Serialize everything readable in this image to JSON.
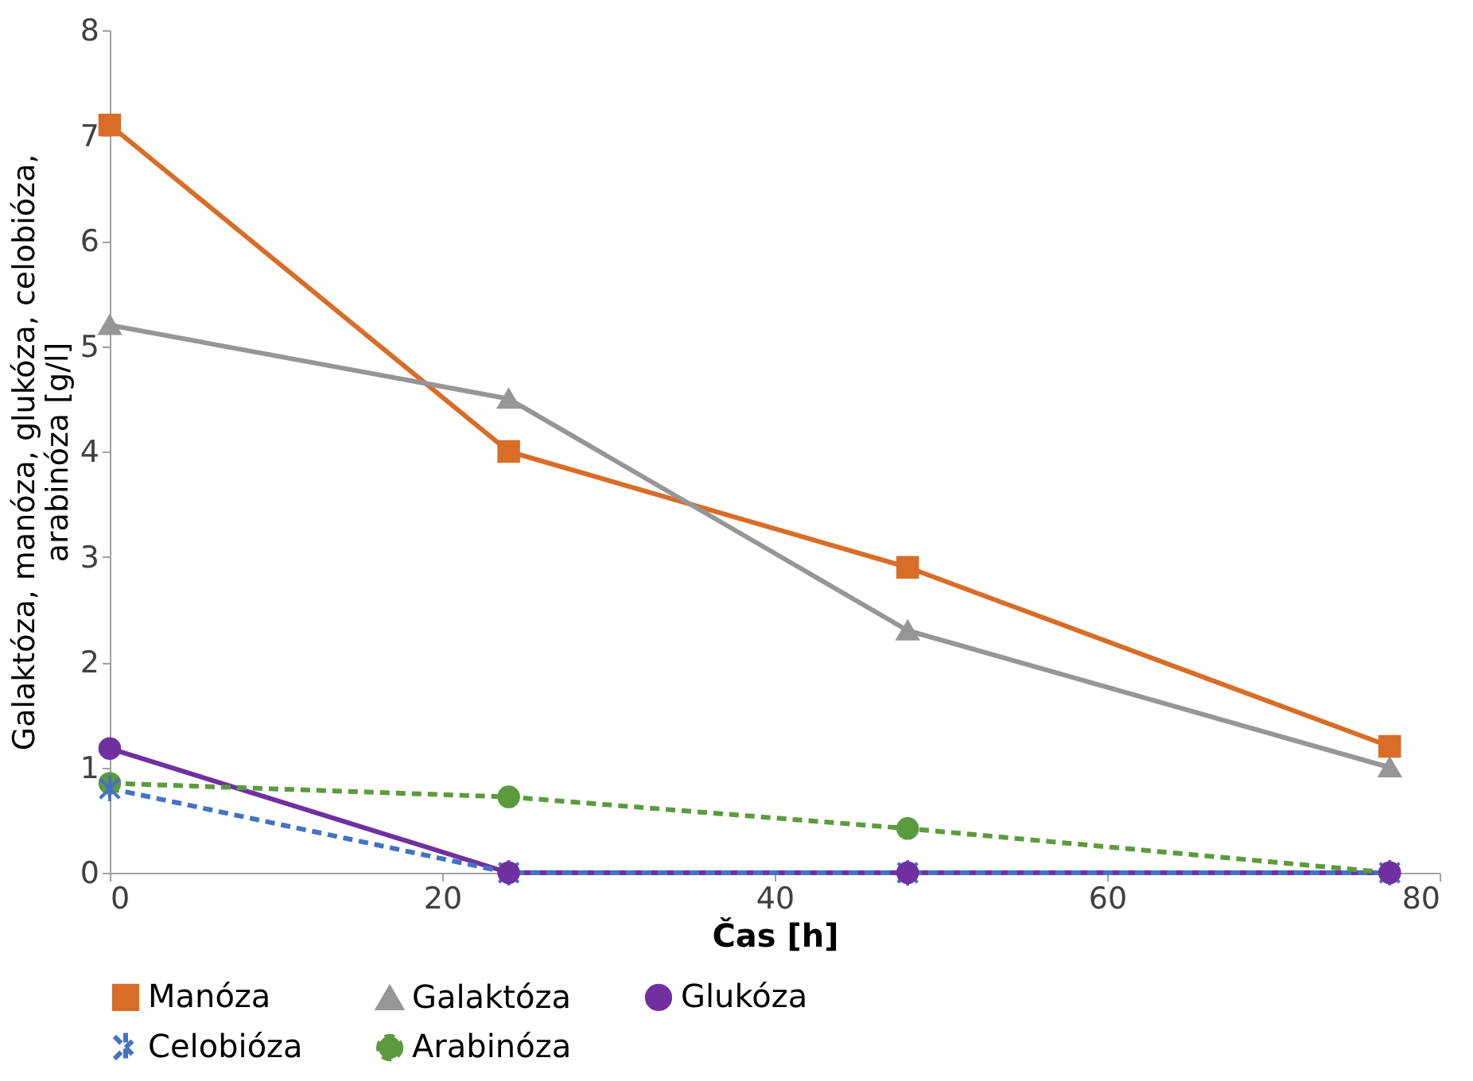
{
  "chart_data": {
    "type": "line",
    "xlabel": "Čas [h]",
    "ylabel": "Galaktóza, manóza, glukóza, celobióza,\narabinóza [g/l]",
    "x": [
      0,
      24,
      48,
      77
    ],
    "xlim": [
      0,
      80
    ],
    "xticks": [
      0,
      20,
      40,
      60,
      80
    ],
    "ylim": [
      0,
      8
    ],
    "yticks": [
      0,
      1,
      2,
      3,
      4,
      5,
      6,
      7,
      8
    ],
    "grid": false,
    "legend": "bottom",
    "series": [
      {
        "name": "Manóza",
        "color": "#d86d27",
        "marker": "square",
        "line_style": "solid",
        "values": [
          7.1,
          4.0,
          2.9,
          1.2
        ]
      },
      {
        "name": "Galaktóza",
        "color": "#969696",
        "marker": "triangle",
        "line_style": "solid",
        "values": [
          5.2,
          4.5,
          2.3,
          1.0
        ]
      },
      {
        "name": "Glukóza",
        "color": "#7030a0",
        "marker": "circle",
        "line_style": "solid",
        "values": [
          1.18,
          0,
          0,
          0
        ]
      },
      {
        "name": "Celobióza",
        "color": "#4472c4",
        "marker": "cross",
        "line_style": "dashed",
        "values": [
          0.8,
          0,
          0,
          0
        ]
      },
      {
        "name": "Arabinóza",
        "color": "#5b9b3d",
        "marker": "circle",
        "line_style": "dashed",
        "values": [
          0.85,
          0.72,
          0.42,
          0
        ]
      }
    ]
  }
}
